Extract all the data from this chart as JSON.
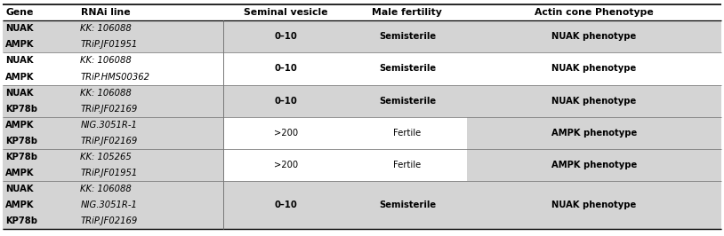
{
  "headers": [
    "Gene",
    "RNAi line",
    "Seminal vesicle",
    "Male fertility",
    "Actin cone Phenotype"
  ],
  "header_align": [
    "left",
    "left",
    "center",
    "center",
    "center"
  ],
  "row_groups": [
    {
      "rows": [
        {
          "gene": "NUAK",
          "rnai": "KK: 106088"
        },
        {
          "gene": "AMPK",
          "rnai": "TRiP.JF01951"
        }
      ],
      "seminal": "0–10",
      "fertility": "Semisterile",
      "phenotype": "NUAK phenotype",
      "bold_data": true,
      "shading": "all_gray"
    },
    {
      "rows": [
        {
          "gene": "NUAK",
          "rnai": "KK: 106088"
        },
        {
          "gene": "AMPK",
          "rnai": "TRiP.HMS00362"
        }
      ],
      "seminal": "0–10",
      "fertility": "Semisterile",
      "phenotype": "NUAK phenotype",
      "bold_data": true,
      "shading": "all_white"
    },
    {
      "rows": [
        {
          "gene": "NUAK",
          "rnai": "KK: 106088"
        },
        {
          "gene": "KP78b",
          "rnai": "TRiP.JF02169"
        }
      ],
      "seminal": "0–10",
      "fertility": "Semisterile",
      "phenotype": "NUAK phenotype",
      "bold_data": true,
      "shading": "all_gray"
    },
    {
      "rows": [
        {
          "gene": "AMPK",
          "rnai": "NIG.3051R-1"
        },
        {
          "gene": "KP78b",
          "rnai": "TRiP.JF02169"
        }
      ],
      "seminal": ">200",
      "fertility": "Fertile",
      "phenotype": "AMPK phenotype",
      "bold_data": false,
      "shading": "mixed_white_gray"
    },
    {
      "rows": [
        {
          "gene": "KP78b",
          "rnai": "KK: 105265"
        },
        {
          "gene": "AMPK",
          "rnai": "TRiP.JF01951"
        }
      ],
      "seminal": ">200",
      "fertility": "Fertile",
      "phenotype": "AMPK phenotype",
      "bold_data": false,
      "shading": "mixed_white_gray"
    },
    {
      "rows": [
        {
          "gene": "NUAK",
          "rnai": "KK: 106088"
        },
        {
          "gene": "AMPK",
          "rnai": "NIG.3051R-1"
        },
        {
          "gene": "KP78b",
          "rnai": "TRiP.JF02169"
        }
      ],
      "seminal": "0–10",
      "fertility": "Semisterile",
      "phenotype": "NUAK phenotype",
      "bold_data": true,
      "shading": "all_gray"
    }
  ],
  "shaded_color": "#d4d4d4",
  "white_color": "#ffffff",
  "font_size": 7.2,
  "header_font_size": 7.8
}
